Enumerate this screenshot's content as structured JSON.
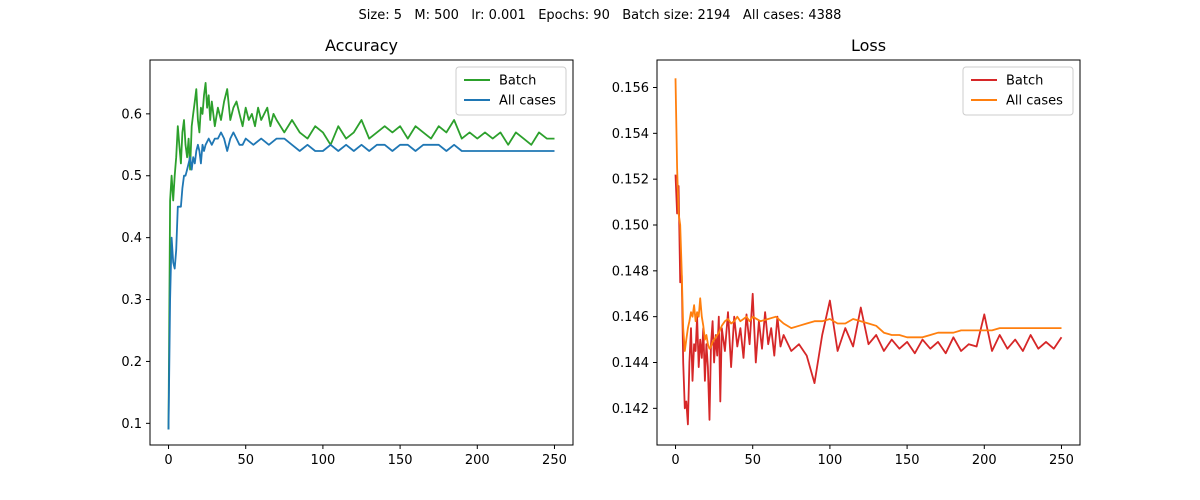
{
  "suptitle": "Size: 5   M: 500   lr: 0.001   Epochs: 90   Batch size: 2194   All cases: 4388",
  "chart_data": [
    {
      "type": "line",
      "title": "Accuracy",
      "xlabel": "",
      "ylabel": "",
      "xlim": [
        -12,
        262
      ],
      "ylim": [
        0.065,
        0.687
      ],
      "xticks": [
        0,
        50,
        100,
        150,
        200,
        250
      ],
      "yticks": [
        0.1,
        0.2,
        0.3,
        0.4,
        0.5,
        0.6
      ],
      "grid": false,
      "legend_position": "top-right",
      "series": [
        {
          "name": "Batch",
          "color": "#2ca02c",
          "x": [
            0,
            1,
            2,
            3,
            4,
            5,
            6,
            7,
            8,
            9,
            10,
            11,
            12,
            13,
            14,
            15,
            16,
            17,
            18,
            19,
            20,
            21,
            22,
            23,
            24,
            25,
            26,
            27,
            28,
            29,
            30,
            32,
            34,
            36,
            38,
            40,
            42,
            44,
            46,
            48,
            50,
            52,
            54,
            56,
            58,
            60,
            62,
            64,
            66,
            68,
            70,
            75,
            80,
            85,
            90,
            95,
            100,
            105,
            110,
            115,
            120,
            125,
            130,
            135,
            140,
            145,
            150,
            155,
            160,
            165,
            170,
            175,
            180,
            185,
            190,
            195,
            200,
            205,
            210,
            215,
            220,
            225,
            230,
            235,
            240,
            245,
            250
          ],
          "y": [
            0.09,
            0.46,
            0.5,
            0.46,
            0.5,
            0.53,
            0.58,
            0.55,
            0.52,
            0.57,
            0.59,
            0.55,
            0.53,
            0.56,
            0.51,
            0.58,
            0.6,
            0.62,
            0.64,
            0.59,
            0.57,
            0.61,
            0.6,
            0.63,
            0.65,
            0.61,
            0.63,
            0.59,
            0.62,
            0.6,
            0.58,
            0.61,
            0.59,
            0.62,
            0.64,
            0.59,
            0.61,
            0.62,
            0.6,
            0.58,
            0.61,
            0.59,
            0.6,
            0.58,
            0.61,
            0.59,
            0.6,
            0.61,
            0.58,
            0.6,
            0.59,
            0.57,
            0.59,
            0.57,
            0.56,
            0.58,
            0.57,
            0.55,
            0.58,
            0.56,
            0.57,
            0.59,
            0.56,
            0.57,
            0.58,
            0.57,
            0.58,
            0.56,
            0.58,
            0.57,
            0.56,
            0.58,
            0.57,
            0.59,
            0.56,
            0.57,
            0.56,
            0.57,
            0.56,
            0.57,
            0.55,
            0.57,
            0.56,
            0.55,
            0.57,
            0.56,
            0.56
          ]
        },
        {
          "name": "All cases",
          "color": "#1f77b4",
          "x": [
            0,
            1,
            2,
            3,
            4,
            5,
            6,
            7,
            8,
            9,
            10,
            11,
            12,
            13,
            14,
            15,
            16,
            17,
            18,
            19,
            20,
            21,
            22,
            23,
            24,
            26,
            28,
            30,
            32,
            34,
            36,
            38,
            40,
            42,
            44,
            46,
            48,
            50,
            55,
            60,
            65,
            70,
            75,
            80,
            85,
            90,
            95,
            100,
            105,
            110,
            115,
            120,
            125,
            130,
            135,
            140,
            145,
            150,
            155,
            160,
            165,
            170,
            175,
            180,
            185,
            190,
            195,
            200,
            205,
            210,
            215,
            220,
            225,
            230,
            235,
            240,
            245,
            250
          ],
          "y": [
            0.09,
            0.3,
            0.4,
            0.36,
            0.35,
            0.38,
            0.45,
            0.45,
            0.45,
            0.48,
            0.5,
            0.5,
            0.51,
            0.52,
            0.53,
            0.51,
            0.53,
            0.52,
            0.54,
            0.55,
            0.54,
            0.52,
            0.55,
            0.54,
            0.55,
            0.56,
            0.55,
            0.56,
            0.56,
            0.57,
            0.56,
            0.54,
            0.56,
            0.57,
            0.56,
            0.55,
            0.55,
            0.56,
            0.55,
            0.56,
            0.55,
            0.56,
            0.56,
            0.55,
            0.54,
            0.55,
            0.54,
            0.54,
            0.55,
            0.54,
            0.55,
            0.54,
            0.55,
            0.54,
            0.55,
            0.55,
            0.54,
            0.55,
            0.55,
            0.54,
            0.55,
            0.55,
            0.55,
            0.54,
            0.55,
            0.54,
            0.54,
            0.54,
            0.54,
            0.54,
            0.54,
            0.54,
            0.54,
            0.54,
            0.54,
            0.54,
            0.54,
            0.54
          ]
        }
      ]
    },
    {
      "type": "line",
      "title": "Loss",
      "xlabel": "",
      "ylabel": "",
      "xlim": [
        -12,
        262
      ],
      "ylim": [
        0.1404,
        0.1572
      ],
      "xticks": [
        0,
        50,
        100,
        150,
        200,
        250
      ],
      "yticks": [
        0.142,
        0.144,
        0.146,
        0.148,
        0.15,
        0.152,
        0.154,
        0.156
      ],
      "grid": false,
      "legend_position": "top-right",
      "series": [
        {
          "name": "Batch",
          "color": "#d62728",
          "x": [
            0,
            1,
            2,
            3,
            4,
            5,
            6,
            7,
            8,
            9,
            10,
            11,
            12,
            13,
            14,
            15,
            16,
            17,
            18,
            19,
            20,
            21,
            22,
            23,
            24,
            25,
            26,
            27,
            28,
            29,
            30,
            32,
            34,
            36,
            38,
            40,
            42,
            44,
            46,
            48,
            50,
            52,
            54,
            56,
            58,
            60,
            62,
            64,
            66,
            68,
            70,
            75,
            80,
            85,
            90,
            95,
            100,
            105,
            110,
            115,
            120,
            125,
            130,
            135,
            140,
            145,
            150,
            155,
            160,
            165,
            170,
            175,
            180,
            185,
            190,
            195,
            200,
            205,
            210,
            215,
            220,
            225,
            230,
            235,
            240,
            245,
            250
          ],
          "y": [
            0.1522,
            0.1505,
            0.1517,
            0.1475,
            0.1478,
            0.144,
            0.142,
            0.1423,
            0.1413,
            0.144,
            0.1455,
            0.1432,
            0.1448,
            0.1445,
            0.146,
            0.1438,
            0.145,
            0.1442,
            0.1455,
            0.1432,
            0.1448,
            0.1438,
            0.1415,
            0.1448,
            0.1458,
            0.144,
            0.1452,
            0.1443,
            0.146,
            0.1423,
            0.1455,
            0.1445,
            0.1462,
            0.1438,
            0.146,
            0.1447,
            0.1455,
            0.1442,
            0.1461,
            0.1448,
            0.147,
            0.144,
            0.1458,
            0.1446,
            0.1462,
            0.1448,
            0.1455,
            0.1443,
            0.146,
            0.1447,
            0.1452,
            0.1445,
            0.1448,
            0.1443,
            0.1431,
            0.1452,
            0.1467,
            0.1445,
            0.1455,
            0.1447,
            0.1464,
            0.1448,
            0.1452,
            0.1445,
            0.145,
            0.1446,
            0.1449,
            0.1444,
            0.145,
            0.1446,
            0.1449,
            0.1444,
            0.1451,
            0.1445,
            0.1448,
            0.1447,
            0.1461,
            0.1445,
            0.1452,
            0.1446,
            0.145,
            0.1445,
            0.1452,
            0.1446,
            0.1449,
            0.1446,
            0.1451
          ]
        },
        {
          "name": "All cases",
          "color": "#ff7f0e",
          "x": [
            0,
            1,
            2,
            3,
            4,
            5,
            6,
            7,
            8,
            9,
            10,
            11,
            12,
            13,
            14,
            15,
            16,
            17,
            18,
            19,
            20,
            21,
            22,
            23,
            24,
            25,
            26,
            28,
            30,
            32,
            34,
            36,
            38,
            40,
            42,
            44,
            46,
            48,
            50,
            55,
            60,
            65,
            70,
            75,
            80,
            85,
            90,
            95,
            100,
            105,
            110,
            115,
            120,
            125,
            130,
            135,
            140,
            145,
            150,
            155,
            160,
            165,
            170,
            175,
            180,
            185,
            190,
            195,
            200,
            205,
            210,
            215,
            220,
            225,
            230,
            235,
            240,
            245,
            250
          ],
          "y": [
            0.1564,
            0.1525,
            0.1505,
            0.15,
            0.148,
            0.1455,
            0.1445,
            0.145,
            0.1455,
            0.1458,
            0.1462,
            0.146,
            0.1465,
            0.1458,
            0.1462,
            0.146,
            0.1468,
            0.146,
            0.1456,
            0.145,
            0.1452,
            0.1448,
            0.1446,
            0.1447,
            0.1449,
            0.145,
            0.1451,
            0.1453,
            0.1456,
            0.1458,
            0.1459,
            0.1457,
            0.1458,
            0.146,
            0.1458,
            0.1459,
            0.146,
            0.1458,
            0.146,
            0.1458,
            0.1459,
            0.146,
            0.1457,
            0.1455,
            0.1456,
            0.1457,
            0.1458,
            0.1458,
            0.1459,
            0.1457,
            0.1457,
            0.1459,
            0.1458,
            0.1457,
            0.1456,
            0.1453,
            0.1452,
            0.1452,
            0.1451,
            0.1451,
            0.1451,
            0.1452,
            0.1453,
            0.1453,
            0.1453,
            0.1454,
            0.1454,
            0.1454,
            0.1454,
            0.1454,
            0.1455,
            0.1455,
            0.1455,
            0.1455,
            0.1455,
            0.1455,
            0.1455,
            0.1455,
            0.1455
          ]
        }
      ]
    }
  ]
}
